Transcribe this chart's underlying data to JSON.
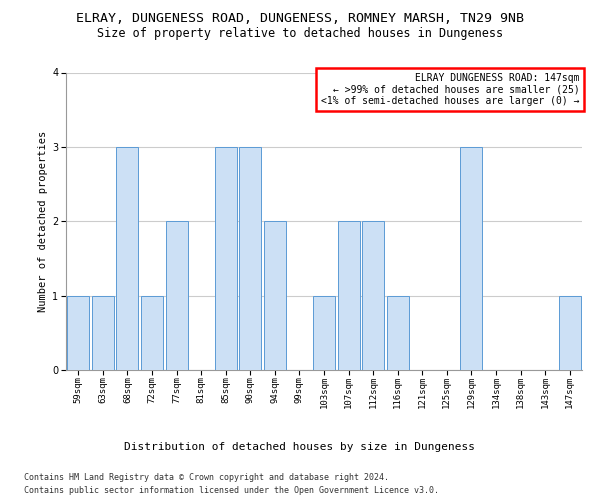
{
  "title": "ELRAY, DUNGENESS ROAD, DUNGENESS, ROMNEY MARSH, TN29 9NB",
  "subtitle": "Size of property relative to detached houses in Dungeness",
  "xlabel": "Distribution of detached houses by size in Dungeness",
  "ylabel": "Number of detached properties",
  "categories": [
    "59sqm",
    "63sqm",
    "68sqm",
    "72sqm",
    "77sqm",
    "81sqm",
    "85sqm",
    "90sqm",
    "94sqm",
    "99sqm",
    "103sqm",
    "107sqm",
    "112sqm",
    "116sqm",
    "121sqm",
    "125sqm",
    "129sqm",
    "134sqm",
    "138sqm",
    "143sqm",
    "147sqm"
  ],
  "values": [
    1,
    1,
    3,
    1,
    2,
    0,
    3,
    3,
    2,
    0,
    1,
    2,
    2,
    1,
    0,
    0,
    3,
    0,
    0,
    0,
    1
  ],
  "bar_color": "#cce0f5",
  "bar_edge_color": "#5b9bd5",
  "annotation_line1": "ELRAY DUNGENESS ROAD: 147sqm",
  "annotation_line2": "← >99% of detached houses are smaller (25)",
  "annotation_line3": "<1% of semi-detached houses are larger (0) →",
  "annotation_box_color": "#ff0000",
  "ylim": [
    0,
    4
  ],
  "yticks": [
    0,
    1,
    2,
    3,
    4
  ],
  "footer_line1": "Contains HM Land Registry data © Crown copyright and database right 2024.",
  "footer_line2": "Contains public sector information licensed under the Open Government Licence v3.0.",
  "background_color": "#ffffff",
  "grid_color": "#cccccc",
  "title_fontsize": 9.5,
  "subtitle_fontsize": 8.5,
  "xlabel_fontsize": 8,
  "ylabel_fontsize": 7.5,
  "tick_fontsize": 6.5,
  "annot_fontsize": 7,
  "footer_fontsize": 6
}
